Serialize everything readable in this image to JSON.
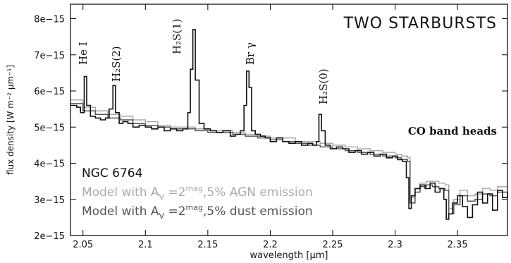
{
  "chart_data": {
    "type": "line",
    "title": "TWO  STARBURSTS",
    "xlabel": "wavelength [µm]",
    "ylabel": "flux density [W m⁻² µm⁻¹]",
    "xlim": [
      2.04,
      2.39
    ],
    "ylim": [
      2e-15,
      8.4e-15
    ],
    "grid": false,
    "x_ticks": [
      {
        "value": 2.05,
        "label": "2.05"
      },
      {
        "value": 2.1,
        "label": "2.1"
      },
      {
        "value": 2.15,
        "label": "2.15"
      },
      {
        "value": 2.2,
        "label": "2.2"
      },
      {
        "value": 2.25,
        "label": "2.25"
      },
      {
        "value": 2.3,
        "label": "2.3"
      },
      {
        "value": 2.35,
        "label": "2.35"
      }
    ],
    "y_ticks": [
      {
        "value": 2e-15,
        "label": "2e−15"
      },
      {
        "value": 3e-15,
        "label": "3e−15"
      },
      {
        "value": 4e-15,
        "label": "4e−15"
      },
      {
        "value": 5e-15,
        "label": "5e−15"
      },
      {
        "value": 6e-15,
        "label": "6e−15"
      },
      {
        "value": 7e-15,
        "label": "7e−15"
      },
      {
        "value": 8e-15,
        "label": "8e−15"
      }
    ],
    "line_annotations": [
      {
        "label": "He I",
        "x": 2.058
      },
      {
        "label": "H₂S(2)",
        "x": 2.074
      },
      {
        "label": "H₂S(1)",
        "x": 2.122
      },
      {
        "label": "Br γ",
        "x": 2.166
      },
      {
        "label": "H₂S(0)",
        "x": 2.223
      }
    ],
    "annotations": [
      {
        "text": "CO band heads"
      }
    ],
    "legend": {
      "placement": "bottom-left",
      "entries": [
        {
          "text": "NGC  6764",
          "color": "#111111"
        },
        {
          "text": "Model with A_V = 2^mag, 5% AGN emission",
          "color": "#aaaaaa"
        },
        {
          "text": "Model with A_V = 2^mag, 5% dust emission",
          "color": "#555555"
        }
      ]
    },
    "series": [
      {
        "name": "NGC 6764",
        "color": "#111111",
        "step": true,
        "x": [
          2.04,
          2.045,
          2.048,
          2.051,
          2.053,
          2.056,
          2.06,
          2.064,
          2.068,
          2.071,
          2.074,
          2.076,
          2.079,
          2.082,
          2.086,
          2.09,
          2.095,
          2.1,
          2.105,
          2.11,
          2.115,
          2.12,
          2.125,
          2.13,
          2.134,
          2.136,
          2.138,
          2.14,
          2.143,
          2.147,
          2.152,
          2.157,
          2.162,
          2.168,
          2.172,
          2.176,
          2.179,
          2.181,
          2.183,
          2.185,
          2.188,
          2.192,
          2.196,
          2.2,
          2.205,
          2.21,
          2.215,
          2.22,
          2.225,
          2.23,
          2.234,
          2.237,
          2.239,
          2.241,
          2.244,
          2.248,
          2.253,
          2.258,
          2.263,
          2.268,
          2.273,
          2.278,
          2.283,
          2.288,
          2.293,
          2.298,
          2.302,
          2.306,
          2.309,
          2.311,
          2.313,
          2.316,
          2.32,
          2.324,
          2.328,
          2.332,
          2.336,
          2.339,
          2.341,
          2.343,
          2.346,
          2.35,
          2.354,
          2.358,
          2.362,
          2.366,
          2.37,
          2.374,
          2.378,
          2.382,
          2.386,
          2.39
        ],
        "y": [
          5.6e-15,
          5.55e-15,
          5.4e-15,
          6.4e-15,
          5.6e-15,
          5.3e-15,
          5.25e-15,
          5.2e-15,
          5.25e-15,
          5.5e-15,
          6.15e-15,
          5.4e-15,
          5.1e-15,
          5.15e-15,
          5.1e-15,
          5e-15,
          5.05e-15,
          5e-15,
          4.95e-15,
          5e-15,
          4.9e-15,
          4.95e-15,
          4.9e-15,
          4.95e-15,
          5.4e-15,
          6.6e-15,
          7.7e-15,
          6.3e-15,
          5.1e-15,
          4.95e-15,
          4.9e-15,
          4.85e-15,
          4.9e-15,
          4.75e-15,
          4.8e-15,
          4.9e-15,
          5.6e-15,
          6.55e-15,
          6.1e-15,
          4.9e-15,
          4.8e-15,
          4.75e-15,
          4.7e-15,
          4.6e-15,
          4.7e-15,
          4.6e-15,
          4.55e-15,
          4.6e-15,
          4.5e-15,
          4.55e-15,
          4.5e-15,
          4.6e-15,
          5.35e-15,
          4.9e-15,
          4.5e-15,
          4.4e-15,
          4.45e-15,
          4.4e-15,
          4.3e-15,
          4.35e-15,
          4.25e-15,
          4.3e-15,
          4.2e-15,
          4.25e-15,
          4.15e-15,
          4.2e-15,
          4.1e-15,
          4.05e-15,
          3.6e-15,
          2.75e-15,
          3.1e-15,
          3.3e-15,
          3.4e-15,
          3.3e-15,
          3.45e-15,
          3.2e-15,
          3.3e-15,
          3e-15,
          2.45e-15,
          2.6e-15,
          2.9e-15,
          3.1e-15,
          2.8e-15,
          2.5e-15,
          2.85e-15,
          3.2e-15,
          2.9e-15,
          3.15e-15,
          2.7e-15,
          3.25e-15,
          3.05e-15,
          3.2e-15
        ]
      },
      {
        "name": "Model with A_V = 2^mag, 5% AGN emission",
        "color": "#aaaaaa",
        "step": true,
        "x": [
          2.04,
          2.05,
          2.06,
          2.07,
          2.08,
          2.09,
          2.1,
          2.11,
          2.12,
          2.13,
          2.14,
          2.15,
          2.16,
          2.17,
          2.18,
          2.19,
          2.2,
          2.21,
          2.22,
          2.23,
          2.24,
          2.25,
          2.26,
          2.27,
          2.28,
          2.29,
          2.3,
          2.305,
          2.31,
          2.312,
          2.316,
          2.32,
          2.325,
          2.33,
          2.335,
          2.34,
          2.343,
          2.347,
          2.352,
          2.358,
          2.364,
          2.37,
          2.376,
          2.382,
          2.39
        ],
        "y": [
          5.75e-15,
          5.55e-15,
          5.45e-15,
          5.35e-15,
          5.3e-15,
          5.2e-15,
          5.15e-15,
          5.05e-15,
          5e-15,
          5e-15,
          4.95e-15,
          4.9e-15,
          4.9e-15,
          4.85e-15,
          4.8e-15,
          4.75e-15,
          4.7e-15,
          4.7e-15,
          4.6e-15,
          4.6e-15,
          4.55e-15,
          4.5e-15,
          4.45e-15,
          4.4e-15,
          4.35e-15,
          4.3e-15,
          4.25e-15,
          4.2e-15,
          4.15e-15,
          3.05e-15,
          3.3e-15,
          3.45e-15,
          3.5e-15,
          3.5e-15,
          3.45e-15,
          3.4e-15,
          2.75e-15,
          3e-15,
          3.25e-15,
          3.1e-15,
          3.15e-15,
          3.3e-15,
          3.25e-15,
          3.35e-15,
          3.35e-15
        ]
      },
      {
        "name": "Model with A_V = 2^mag, 5% dust emission",
        "color": "#555555",
        "step": true,
        "x": [
          2.04,
          2.05,
          2.06,
          2.07,
          2.08,
          2.09,
          2.1,
          2.11,
          2.12,
          2.13,
          2.14,
          2.15,
          2.16,
          2.17,
          2.18,
          2.19,
          2.2,
          2.21,
          2.22,
          2.23,
          2.24,
          2.25,
          2.26,
          2.27,
          2.28,
          2.29,
          2.3,
          2.305,
          2.31,
          2.312,
          2.316,
          2.32,
          2.325,
          2.33,
          2.335,
          2.34,
          2.343,
          2.347,
          2.352,
          2.358,
          2.364,
          2.37,
          2.376,
          2.382,
          2.39
        ],
        "y": [
          5.65e-15,
          5.45e-15,
          5.35e-15,
          5.25e-15,
          5.2e-15,
          5.1e-15,
          5.05e-15,
          5e-15,
          4.95e-15,
          4.95e-15,
          4.9e-15,
          4.85e-15,
          4.85e-15,
          4.8e-15,
          4.75e-15,
          4.7e-15,
          4.65e-15,
          4.6e-15,
          4.55e-15,
          4.5e-15,
          4.45e-15,
          4.4e-15,
          4.35e-15,
          4.3e-15,
          4.25e-15,
          4.2e-15,
          4.15e-15,
          4.1e-15,
          4.05e-15,
          2.9e-15,
          3.2e-15,
          3.35e-15,
          3.4e-15,
          3.35e-15,
          3.3e-15,
          3.25e-15,
          2.6e-15,
          2.85e-15,
          3.1e-15,
          2.95e-15,
          3e-15,
          3.15e-15,
          3.1e-15,
          3.2e-15,
          3.2e-15
        ]
      }
    ]
  }
}
